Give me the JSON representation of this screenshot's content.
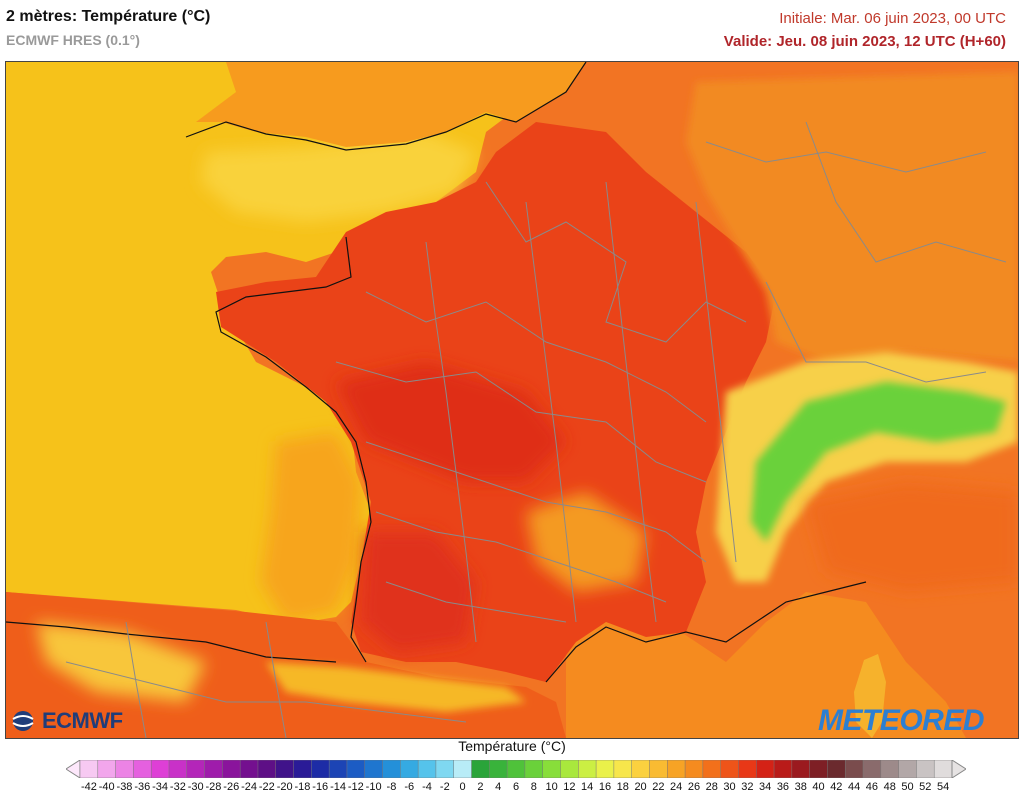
{
  "header": {
    "title": "2 mètres: Température (°C)",
    "model": "ECMWF HRES (0.1°)",
    "initial": "Initiale: Mar. 06 juin 2023, 00 UTC",
    "valid": "Valide: Jeu. 08 juin 2023, 12 UTC (H+60)"
  },
  "logos": {
    "left": "ECMWF",
    "right": "METEORED"
  },
  "legend": {
    "title": "Température (°C)",
    "ticks": [
      "-42",
      "-40",
      "-38",
      "-36",
      "-34",
      "-32",
      "-30",
      "-28",
      "-26",
      "-24",
      "-22",
      "-20",
      "-18",
      "-16",
      "-14",
      "-12",
      "-10",
      "-8",
      "-6",
      "-4",
      "-2",
      "0",
      "2",
      "4",
      "6",
      "8",
      "10",
      "12",
      "14",
      "16",
      "18",
      "20",
      "22",
      "24",
      "26",
      "28",
      "30",
      "32",
      "34",
      "36",
      "38",
      "40",
      "42",
      "44",
      "46",
      "48",
      "50",
      "52",
      "54"
    ],
    "colors": [
      "#f7c9f2",
      "#f2a6ec",
      "#ec83e5",
      "#e560df",
      "#de3fd6",
      "#c931c8",
      "#b426b9",
      "#9f1cab",
      "#8a149c",
      "#74108f",
      "#5e0f86",
      "#40138a",
      "#2a1b97",
      "#1d2ca6",
      "#1c44b5",
      "#1c5cc4",
      "#1f76cf",
      "#2490d9",
      "#35aae2",
      "#55c3eb",
      "#7fd8f1",
      "#b8ecf7",
      "#2aa43a",
      "#39b33b",
      "#4fc23a",
      "#6ad13a",
      "#88de3a",
      "#a9e83d",
      "#cbef43",
      "#eaf14a",
      "#f7e64b",
      "#fbd13f",
      "#f9bb32",
      "#f7a325",
      "#f58b1f",
      "#f2701b",
      "#ee5419",
      "#e83817",
      "#d42216",
      "#b91b19",
      "#9b1a1f",
      "#7e1f25",
      "#6b2a2e",
      "#7a4c4d",
      "#8a6b6c",
      "#9d8a8a",
      "#b2a7a7",
      "#c9c3c3",
      "#e0dcdc"
    ]
  }
}
